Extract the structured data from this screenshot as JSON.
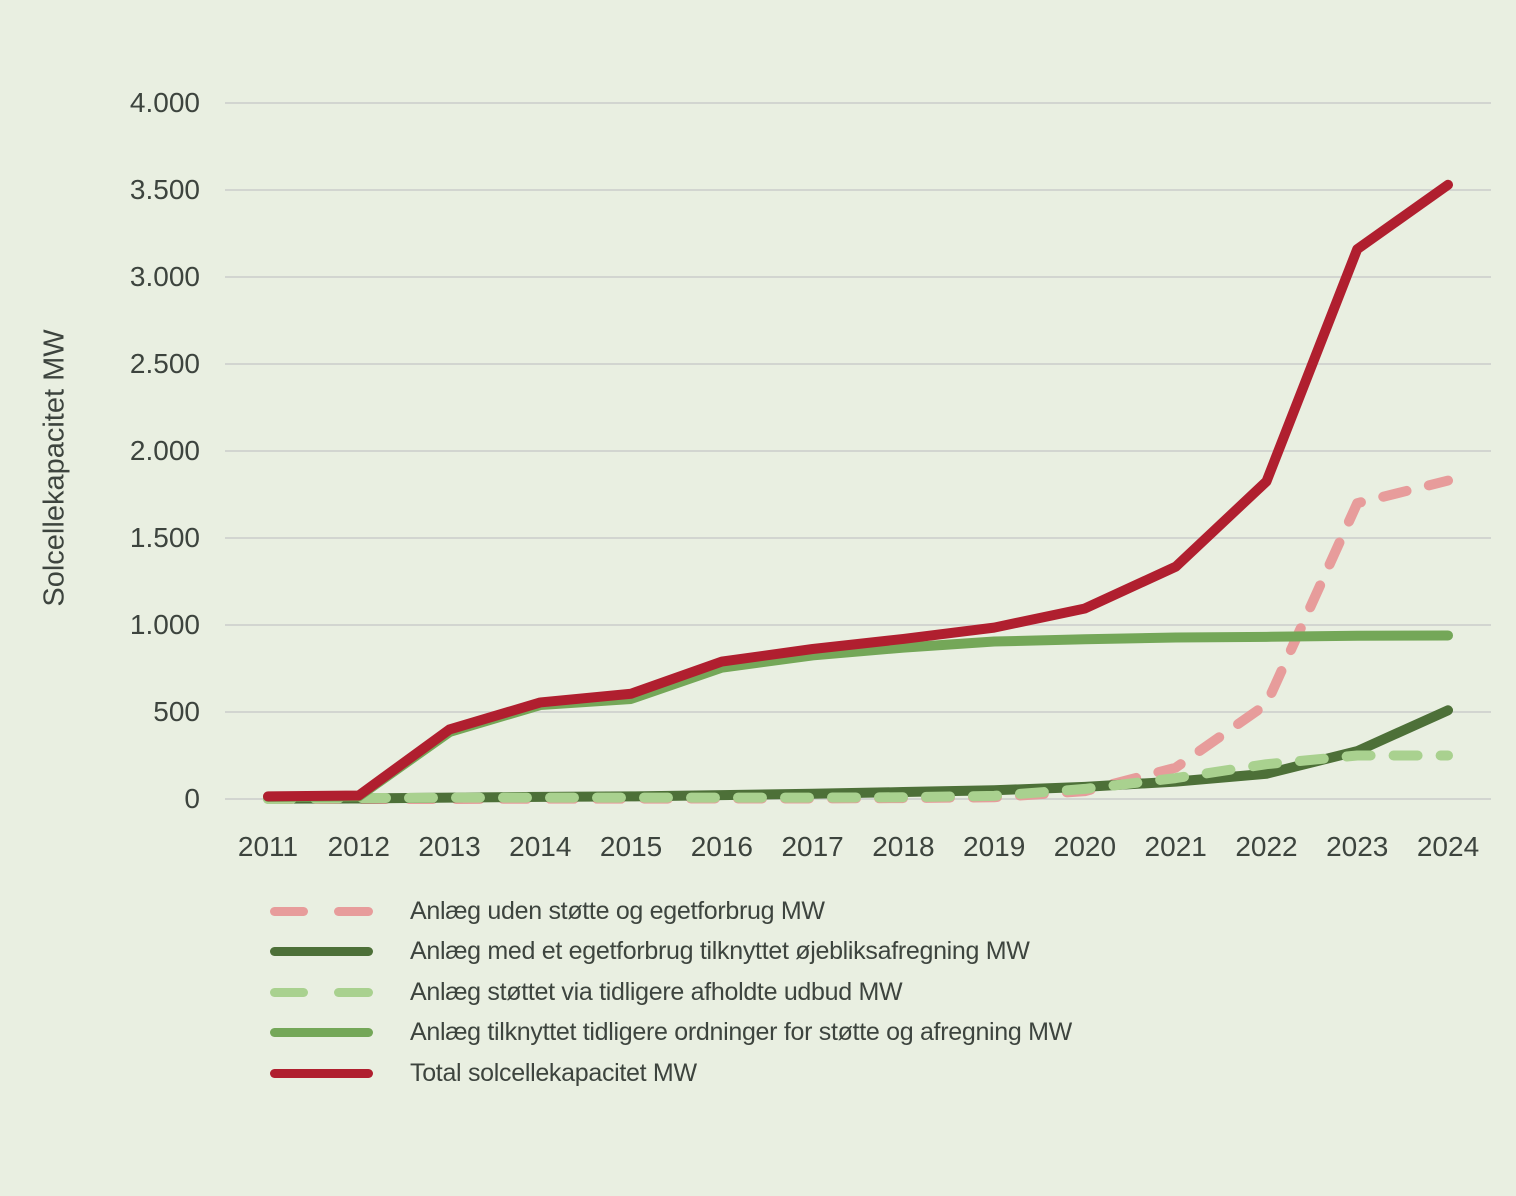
{
  "colors": {
    "background": "#e9efe1",
    "gridline": "#d2d5d0",
    "text": "#3d443e"
  },
  "chart_data": {
    "type": "line",
    "title": "",
    "ylabel": "Solcellekapacitet MW",
    "xlabel": "",
    "x": [
      2011,
      2012,
      2013,
      2014,
      2015,
      2016,
      2017,
      2018,
      2019,
      2020,
      2021,
      2022,
      2023,
      2024
    ],
    "x_tick_labels": [
      "2011",
      "2012",
      "2013",
      "2014",
      "2015",
      "2016",
      "2017",
      "2018",
      "2019",
      "2020",
      "2021",
      "2022",
      "2023",
      "2024"
    ],
    "ylim": [
      0,
      4000
    ],
    "y_ticks": [
      0,
      500,
      1000,
      1500,
      2000,
      2500,
      3000,
      3500,
      4000
    ],
    "y_tick_labels": [
      "0",
      "500",
      "1.000",
      "1.500",
      "2.000",
      "2.500",
      "3.000",
      "3.500",
      "4.000"
    ],
    "grid": true,
    "legend_position": "bottom-left",
    "series": [
      {
        "key": "uden-stoette-egetforbrug",
        "name": "Anlæg uden støtte og egetforbrug MW",
        "color": "#e79c9b",
        "dashed": true,
        "values": [
          0,
          0,
          0,
          2,
          2,
          3,
          3,
          5,
          10,
          45,
          180,
          545,
          1700,
          1830
        ]
      },
      {
        "key": "egetforbrug-oejebliksafregning",
        "name": "Anlæg med et egetforbrug tilknyttet øjebliksafregning MW",
        "color": "#4d7038",
        "dashed": false,
        "values": [
          2,
          3,
          8,
          12,
          15,
          22,
          30,
          40,
          50,
          70,
          100,
          145,
          275,
          510
        ]
      },
      {
        "key": "stoettet-via-udbud",
        "name": "Anlæg støttet via tidligere afholdte udbud MW",
        "color": "#a9d18f",
        "dashed": true,
        "values": [
          0,
          5,
          8,
          8,
          8,
          8,
          8,
          10,
          18,
          58,
          120,
          200,
          250,
          250
        ]
      },
      {
        "key": "tidligere-ordninger",
        "name": "Anlæg tilknyttet tidligere ordninger for støtte og afregning MW",
        "color": "#74a758",
        "dashed": false,
        "values": [
          12,
          15,
          385,
          540,
          575,
          755,
          825,
          870,
          905,
          918,
          928,
          932,
          938,
          940
        ]
      },
      {
        "key": "total-solcellekapacitet",
        "name": "Total solcellekapacitet MW",
        "color": "#b01f2f",
        "dashed": false,
        "values": [
          15,
          20,
          400,
          555,
          605,
          790,
          862,
          920,
          985,
          1095,
          1335,
          1825,
          3160,
          3530
        ]
      }
    ]
  }
}
